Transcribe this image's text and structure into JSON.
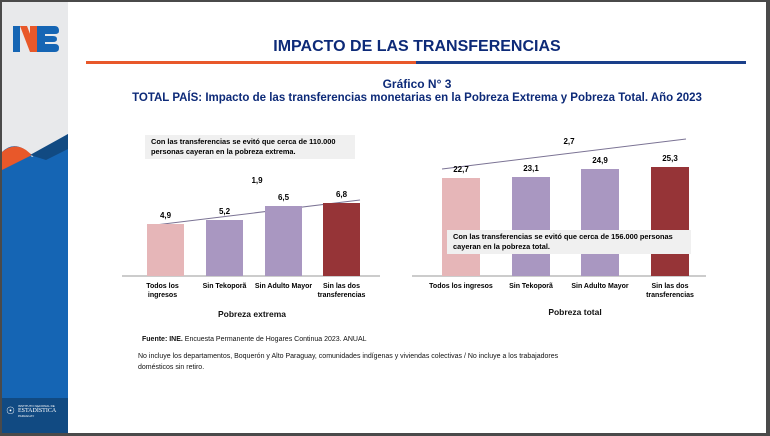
{
  "header": {
    "title": "IMPACTO DE LAS TRANSFERENCIAS",
    "logo_text": "INE"
  },
  "graph_number": "Gráfico N° 3",
  "subtitle": "TOTAL PAÍS: Impacto de las transferencias monetarias en la Pobreza Extrema y Pobreza Total. Año 2023",
  "colors": {
    "accent_orange": "#e8582a",
    "brand_blue": "#1565b4",
    "dark_blue": "#114a82",
    "pink": "#e6b6b8",
    "purple": "#a997c1",
    "dark_red": "#963437"
  },
  "chart_data": [
    {
      "type": "bar",
      "title": "Pobreza extrema",
      "categories": [
        "Todos los ingresos",
        "Sin Tekoporã",
        "Sin Adulto Mayor",
        "Sin las dos transferencias"
      ],
      "values": [
        4.9,
        5.2,
        6.5,
        6.8
      ],
      "value_labels": [
        "4,9",
        "5,2",
        "6,5",
        "6,8"
      ],
      "colors": [
        "#e6b6b8",
        "#a997c1",
        "#a997c1",
        "#963437"
      ],
      "trend_label": "1,9",
      "note": "Con las transferencias se evitó que cerca de 110.000 personas cayeran en la pobreza extrema."
    },
    {
      "type": "bar",
      "title": "Pobreza total",
      "categories": [
        "Todos los ingresos",
        "Sin Tekoporã",
        "Sin Adulto Mayor",
        "Sin las dos transferencias"
      ],
      "values": [
        22.7,
        23.1,
        24.9,
        25.3
      ],
      "value_labels": [
        "22,7",
        "23,1",
        "24,9",
        "25,3"
      ],
      "colors": [
        "#e6b6b8",
        "#a997c1",
        "#a997c1",
        "#963437"
      ],
      "trend_label": "2,7",
      "note": "Con las transferencias se evitó que cerca de 156.000 personas cayeran en la pobreza total."
    }
  ],
  "footer": {
    "source_label": "Fuente: INE.",
    "source_text": "Encuesta Permanente de Hogares Continua 2023. ANUAL",
    "note": "No incluye los departamentos, Boquerón y Alto Paraguay, comunidades indígenas y viviendas colectivas / No incluye a los trabajadores domésticos sin retiro."
  },
  "institution": {
    "line1": "INSTITUTO NACIONAL DE",
    "line2": "ESTADÍSTICA",
    "line3": "PARAGUAY"
  }
}
